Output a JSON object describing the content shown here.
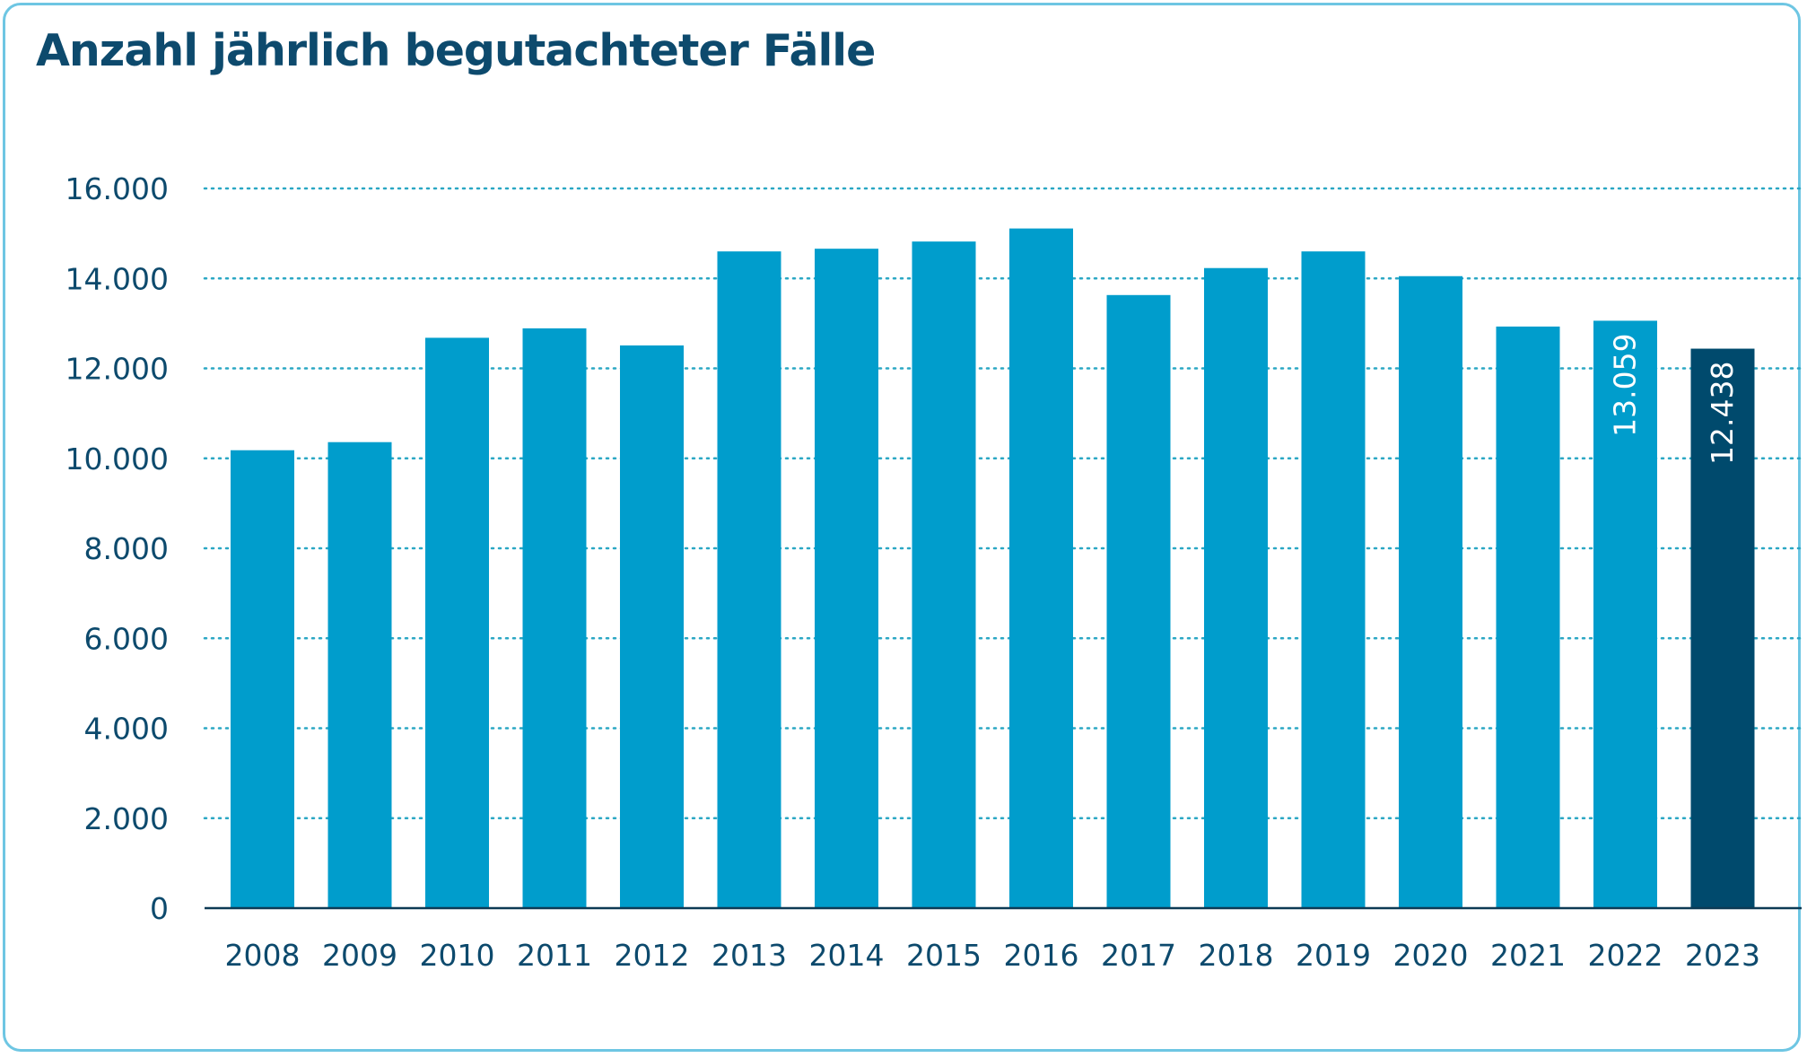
{
  "chart_data": {
    "type": "bar",
    "title": "Anzahl jährlich begutachteter Fälle",
    "xlabel": "",
    "ylabel": "",
    "categories": [
      "2008",
      "2009",
      "2010",
      "2011",
      "2012",
      "2013",
      "2014",
      "2015",
      "2016",
      "2017",
      "2018",
      "2019",
      "2020",
      "2021",
      "2022",
      "2023"
    ],
    "values": [
      10180,
      10360,
      12680,
      12890,
      12510,
      14600,
      14660,
      14820,
      15110,
      13630,
      14230,
      14600,
      14050,
      12930,
      13059,
      12438
    ],
    "ylim": [
      0,
      16000
    ],
    "yticks": [
      0,
      2000,
      4000,
      6000,
      8000,
      10000,
      12000,
      14000,
      16000
    ],
    "ytick_labels": [
      "0",
      "2.000",
      "4.000",
      "6.000",
      "8.000",
      "10.000",
      "12.000",
      "14.000",
      "16.000"
    ],
    "data_labels": [
      {
        "category": "2022",
        "text": "13.059"
      },
      {
        "category": "2023",
        "text": "12.438"
      }
    ],
    "highlight_category": "2023",
    "grid": true,
    "colors": {
      "bar": "#009dcc",
      "highlight_bar": "#004a6d",
      "grid": "#2aa7c4",
      "axis": "#0d3a55",
      "text": "#0d4a6d",
      "frame": "#6ec6e3"
    }
  }
}
